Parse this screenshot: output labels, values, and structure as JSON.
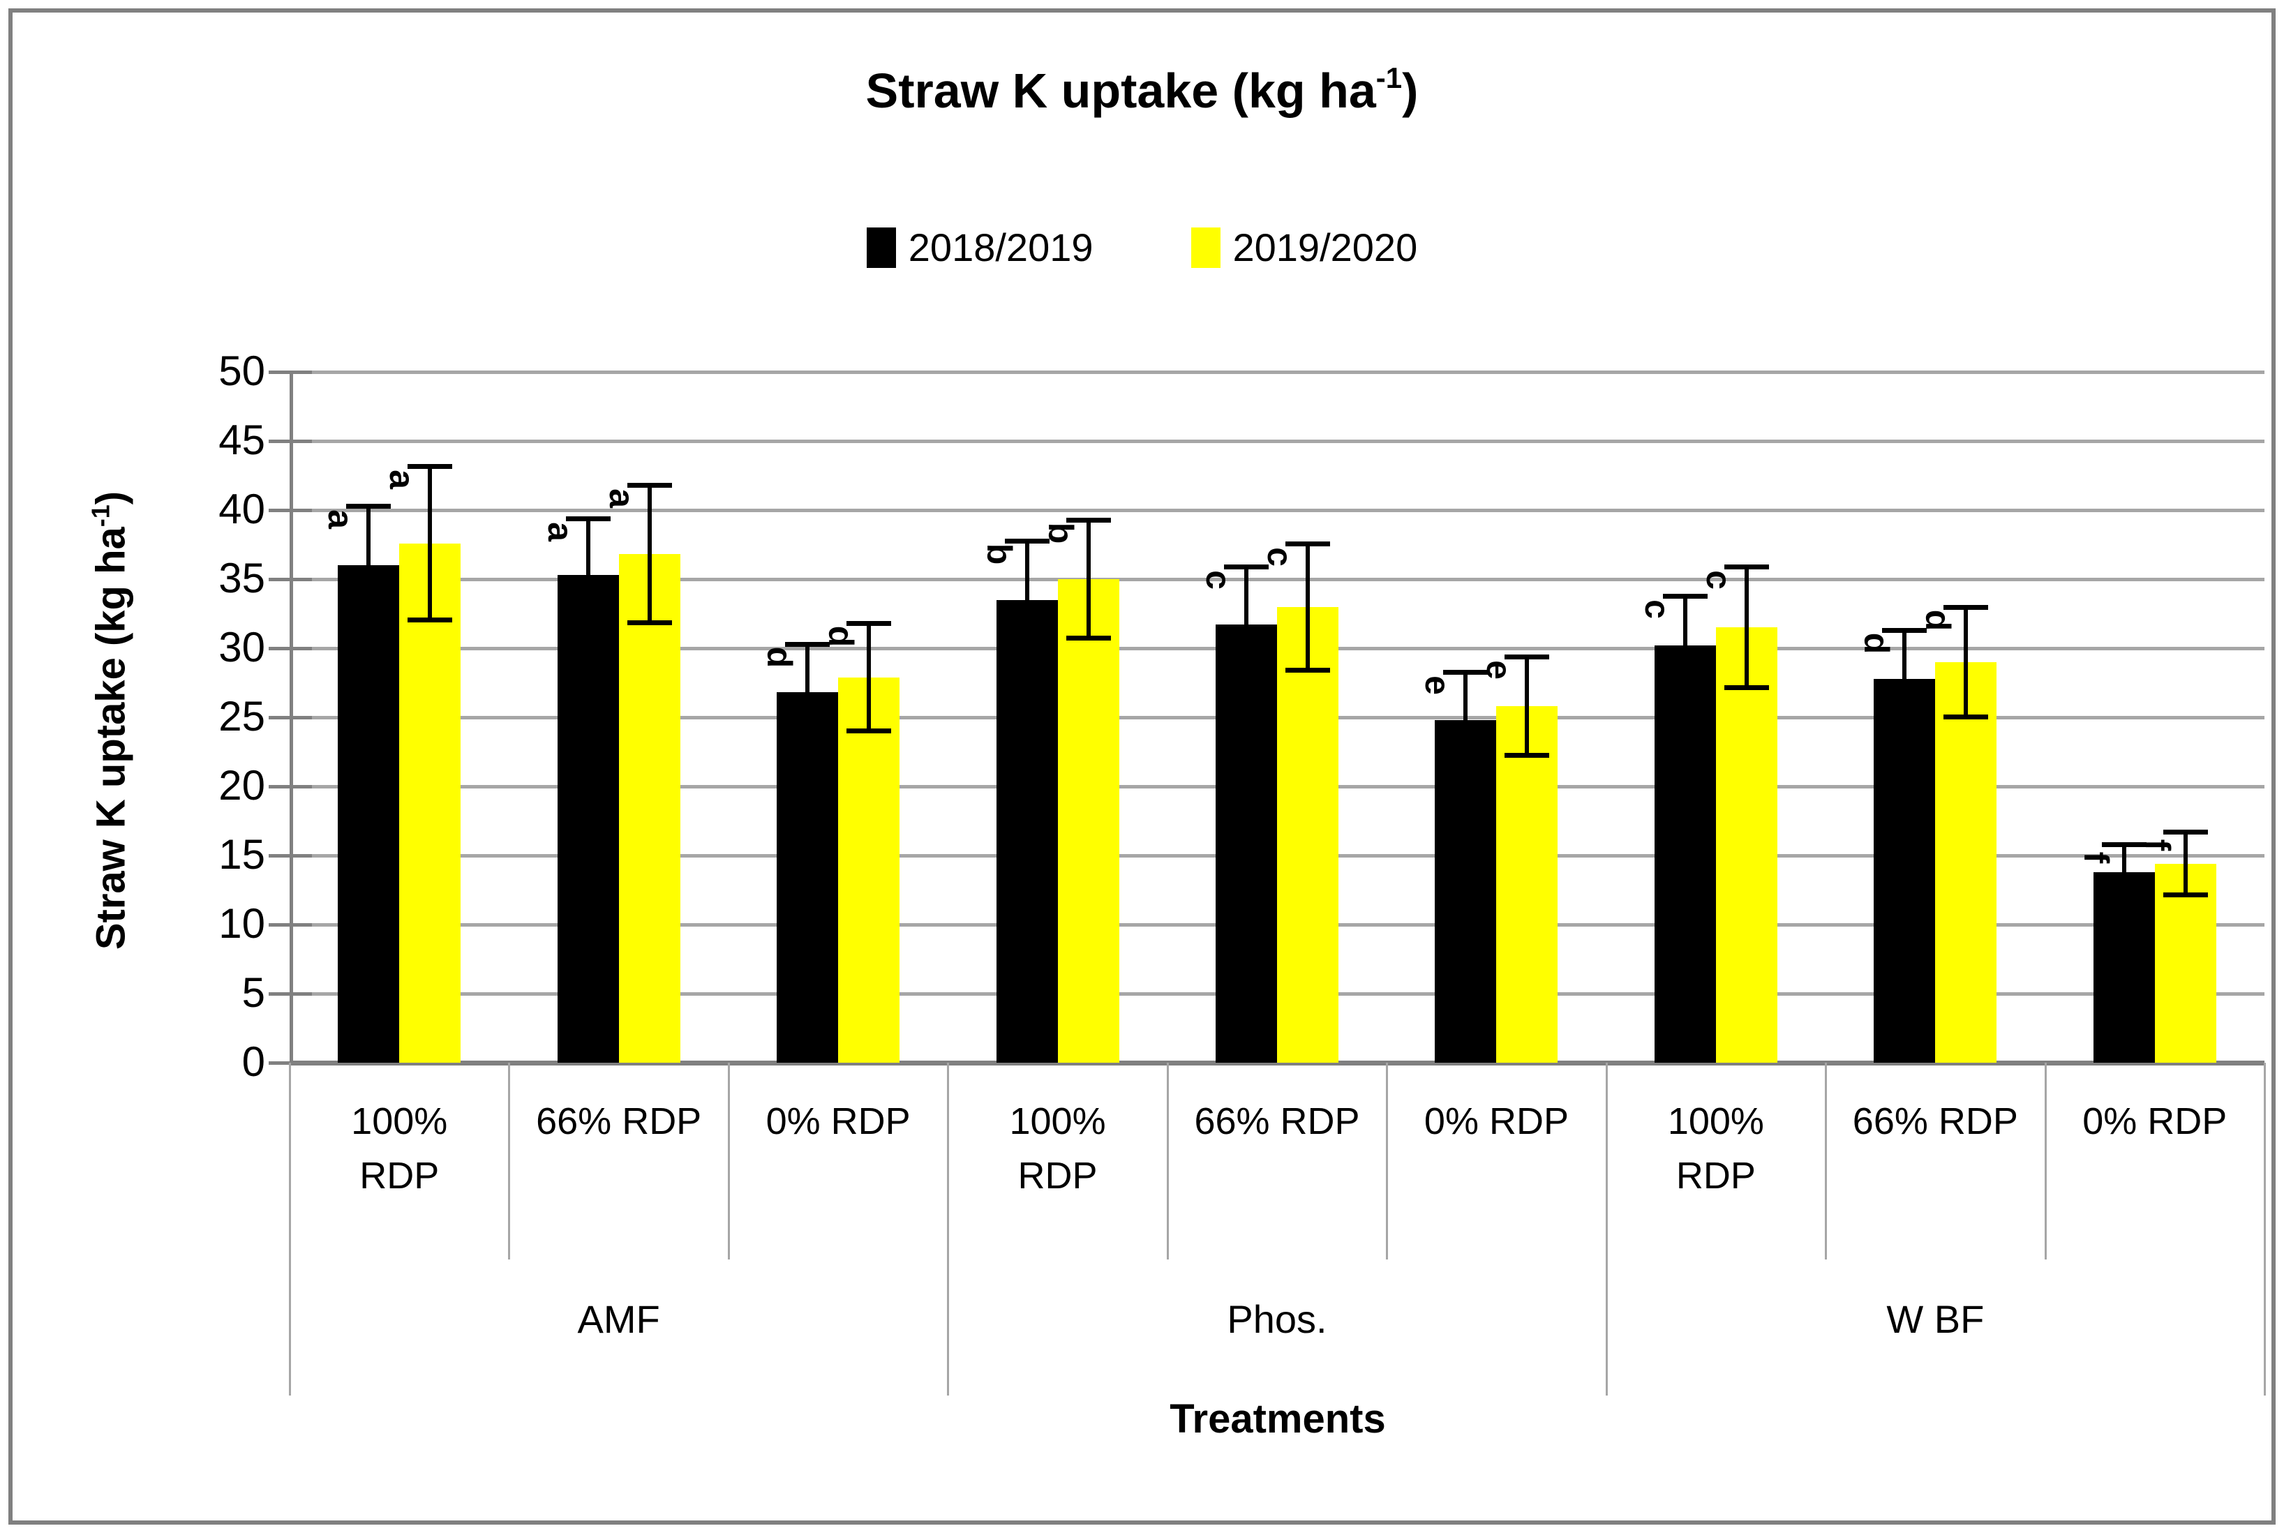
{
  "title": {
    "main": "Straw K uptake (kg ha",
    "sup": "-1",
    "end": ")"
  },
  "legend": {
    "items": [
      {
        "label": "2018/2019",
        "color": "#000000"
      },
      {
        "label": "2019/2020",
        "color": "#FFFF00"
      }
    ]
  },
  "y_axis": {
    "title_main": "Straw K uptake (kg ha",
    "title_sup": "-1",
    "title_end": ")",
    "ticks": [
      0,
      5,
      10,
      15,
      20,
      25,
      30,
      35,
      40,
      45,
      50
    ]
  },
  "x_axis": {
    "title": "Treatments"
  },
  "colors": {
    "series_2018": "#000000",
    "series_2019": "#FFFF00",
    "gridline": "#A6A6A6",
    "axis": "#808080"
  },
  "chart_data": {
    "type": "bar",
    "title": "Straw K uptake (kg ha-1)",
    "ylabel": "Straw K uptake (kg ha-1)",
    "xlabel": "Treatments",
    "ylim": [
      0,
      50
    ],
    "ytick_step": 5,
    "grid": true,
    "legend_position": "top",
    "series": [
      {
        "name": "2018/2019",
        "color": "#000000"
      },
      {
        "name": "2019/2020",
        "color": "#FFFF00"
      }
    ],
    "groups": [
      {
        "label": "AMF",
        "treatments": [
          {
            "label_lines": [
              "100%",
              "RDP"
            ],
            "points": [
              {
                "value": 36.0,
                "err": 4.3,
                "letter": "a"
              },
              {
                "value": 37.6,
                "err": 5.6,
                "letter": "a"
              }
            ]
          },
          {
            "label_lines": [
              "66% RDP"
            ],
            "points": [
              {
                "value": 35.3,
                "err": 4.1,
                "letter": "a"
              },
              {
                "value": 36.8,
                "err": 5.0,
                "letter": "a"
              }
            ]
          },
          {
            "label_lines": [
              "0% RDP"
            ],
            "points": [
              {
                "value": 26.8,
                "err": 3.5,
                "letter": "d"
              },
              {
                "value": 27.9,
                "err": 3.9,
                "letter": "d"
              }
            ]
          }
        ]
      },
      {
        "label": "Phos.",
        "treatments": [
          {
            "label_lines": [
              "100%",
              "RDP"
            ],
            "points": [
              {
                "value": 33.5,
                "err": 4.3,
                "letter": "b"
              },
              {
                "value": 35.0,
                "err": 4.3,
                "letter": "b"
              }
            ]
          },
          {
            "label_lines": [
              "66% RDP"
            ],
            "points": [
              {
                "value": 31.7,
                "err": 4.2,
                "letter": "c"
              },
              {
                "value": 33.0,
                "err": 4.6,
                "letter": "c"
              }
            ]
          },
          {
            "label_lines": [
              "0% RDP"
            ],
            "points": [
              {
                "value": 24.8,
                "err": 3.5,
                "letter": "e"
              },
              {
                "value": 25.8,
                "err": 3.6,
                "letter": "e"
              }
            ]
          }
        ]
      },
      {
        "label": "W BF",
        "treatments": [
          {
            "label_lines": [
              "100%",
              "RDP"
            ],
            "points": [
              {
                "value": 30.2,
                "err": 3.6,
                "letter": "c"
              },
              {
                "value": 31.5,
                "err": 4.4,
                "letter": "c"
              }
            ]
          },
          {
            "label_lines": [
              "66% RDP"
            ],
            "points": [
              {
                "value": 27.8,
                "err": 3.5,
                "letter": "d"
              },
              {
                "value": 29.0,
                "err": 4.0,
                "letter": "d"
              }
            ]
          },
          {
            "label_lines": [
              "0% RDP"
            ],
            "points": [
              {
                "value": 13.8,
                "err": 2.0,
                "letter": "f"
              },
              {
                "value": 14.4,
                "err": 2.3,
                "letter": "f"
              }
            ]
          }
        ]
      }
    ]
  }
}
